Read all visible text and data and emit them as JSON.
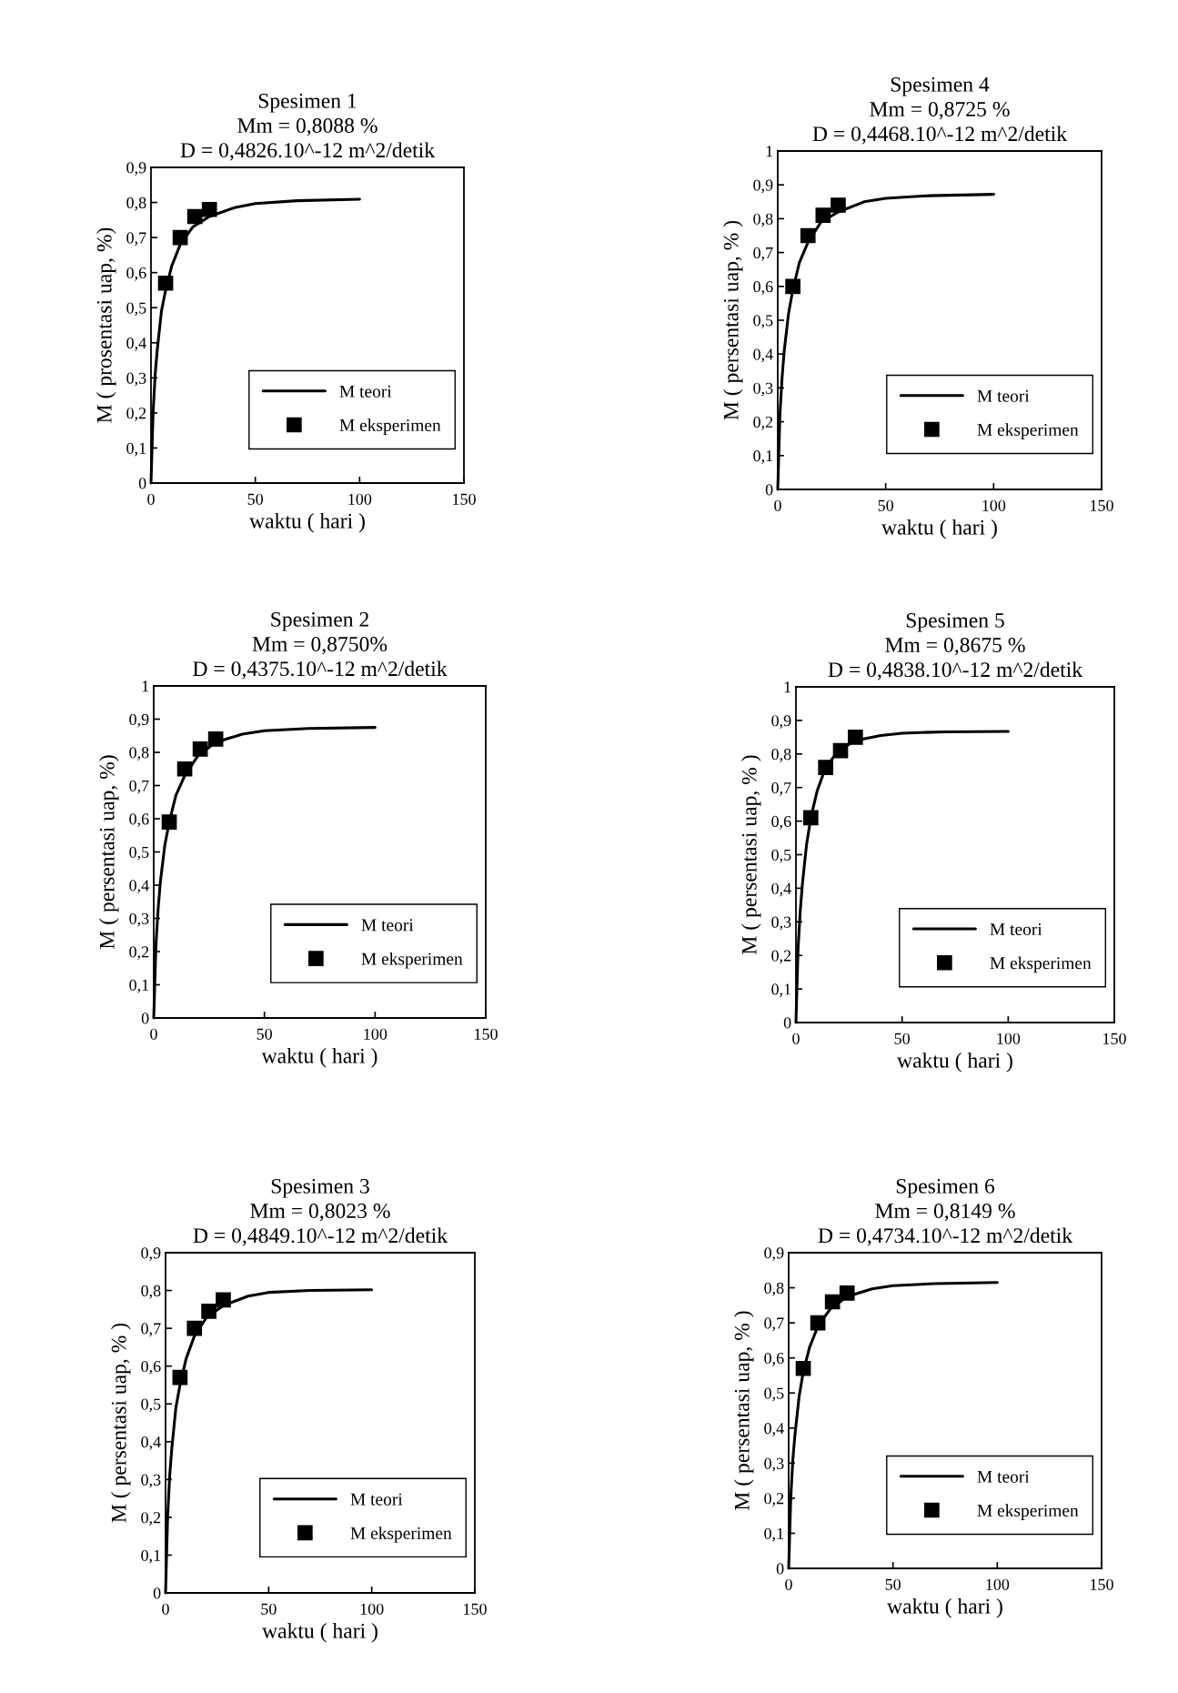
{
  "chart_data": [
    {
      "type": "line",
      "title": "Spesimen 1\nMm = 0,8088 %\nD = 0,4826.10^-12 m^2/detik",
      "xlabel": "waktu ( hari )",
      "ylabel": "M ( prosentasi uap, %)",
      "xlim": [
        0,
        150
      ],
      "xticks": [
        0,
        50,
        100,
        150
      ],
      "ylim": [
        0,
        0.9
      ],
      "yticks": [
        0,
        {
          "value": 0.1,
          "label": "0,1"
        },
        {
          "value": 0.2,
          "label": "0,2"
        },
        {
          "value": 0.3,
          "label": "0,3"
        },
        {
          "value": 0.4,
          "label": "0,4"
        },
        {
          "value": 0.5,
          "label": "0,5"
        },
        {
          "value": 0.6,
          "label": "0,6"
        },
        {
          "value": 0.7,
          "label": "0,7"
        },
        {
          "value": 0.8,
          "label": "0,8"
        },
        {
          "value": 0.9,
          "label": "0,9"
        }
      ],
      "grid": false,
      "legend": "bottom right",
      "series": [
        {
          "name": "M teori",
          "color": "#000000",
          "line_style": "solid",
          "x": [
            0,
            1,
            2,
            3,
            5,
            7,
            10,
            14,
            20,
            28,
            40,
            50,
            70,
            100
          ],
          "values": [
            0,
            0.2,
            0.31,
            0.38,
            0.49,
            0.55,
            0.62,
            0.68,
            0.73,
            0.76,
            0.785,
            0.797,
            0.805,
            0.809
          ]
        },
        {
          "name": "M eksperimen",
          "type": "scatter",
          "color": "#000000",
          "marker": "square",
          "x": [
            7,
            14,
            21,
            28
          ],
          "values": [
            0.57,
            0.7,
            0.76,
            0.78
          ]
        }
      ]
    },
    {
      "type": "line",
      "title": "Spesimen 4\nMm = 0,8725 %\nD = 0,4468.10^-12 m^2/detik",
      "xlabel": "waktu ( hari )",
      "ylabel": "M ( persentasi uap, % )",
      "xlim": [
        0,
        150
      ],
      "xticks": [
        0,
        50,
        100,
        150
      ],
      "ylim": [
        0,
        1
      ],
      "yticks": [
        0,
        {
          "value": 0.1,
          "label": "0,1"
        },
        {
          "value": 0.2,
          "label": "0,2"
        },
        {
          "value": 0.3,
          "label": "0,3"
        },
        {
          "value": 0.4,
          "label": "0,4"
        },
        {
          "value": 0.5,
          "label": "0,5"
        },
        {
          "value": 0.6,
          "label": "0,6"
        },
        {
          "value": 0.7,
          "label": "0,7"
        },
        {
          "value": 0.8,
          "label": "0,8"
        },
        {
          "value": 0.9,
          "label": "0,9"
        },
        1
      ],
      "grid": false,
      "legend": "bottom right",
      "series": [
        {
          "name": "M teori",
          "color": "#000000",
          "line_style": "solid",
          "x": [
            0,
            1,
            2,
            3,
            5,
            7,
            10,
            14,
            20,
            28,
            40,
            50,
            70,
            100
          ],
          "values": [
            0,
            0.22,
            0.33,
            0.41,
            0.52,
            0.59,
            0.67,
            0.73,
            0.79,
            0.82,
            0.85,
            0.86,
            0.868,
            0.872
          ]
        },
        {
          "name": "M eksperimen",
          "type": "scatter",
          "color": "#000000",
          "marker": "square",
          "x": [
            7,
            14,
            21,
            28
          ],
          "values": [
            0.6,
            0.75,
            0.81,
            0.84
          ]
        }
      ]
    },
    {
      "type": "line",
      "title": "Spesimen 2\nMm = 0,8750%\nD = 0,4375.10^-12 m^2/detik",
      "xlabel": "waktu ( hari )",
      "ylabel": "M ( persentasi uap, %)",
      "xlim": [
        0,
        150
      ],
      "xticks": [
        0,
        50,
        100,
        150
      ],
      "ylim": [
        0,
        1
      ],
      "yticks": [
        0,
        {
          "value": 0.1,
          "label": "0,1"
        },
        {
          "value": 0.2,
          "label": "0,2"
        },
        {
          "value": 0.3,
          "label": "0,3"
        },
        {
          "value": 0.4,
          "label": "0,4"
        },
        {
          "value": 0.5,
          "label": "0,5"
        },
        {
          "value": 0.6,
          "label": "0,6"
        },
        {
          "value": 0.7,
          "label": "0,7"
        },
        {
          "value": 0.8,
          "label": "0,8"
        },
        {
          "value": 0.9,
          "label": "0,9"
        },
        1
      ],
      "grid": false,
      "legend": "bottom right",
      "series": [
        {
          "name": "M teori",
          "color": "#000000",
          "line_style": "solid",
          "x": [
            0,
            1,
            2,
            3,
            5,
            7,
            10,
            14,
            20,
            28,
            40,
            50,
            70,
            100
          ],
          "values": [
            0,
            0.22,
            0.33,
            0.41,
            0.52,
            0.59,
            0.67,
            0.73,
            0.79,
            0.83,
            0.855,
            0.865,
            0.872,
            0.875
          ]
        },
        {
          "name": "M eksperimen",
          "type": "scatter",
          "color": "#000000",
          "marker": "square",
          "x": [
            7,
            14,
            21,
            28
          ],
          "values": [
            0.59,
            0.75,
            0.81,
            0.84
          ]
        }
      ]
    },
    {
      "type": "line",
      "title": "Spesimen 5\nMm = 0,8675 %\nD = 0,4838.10^-12 m^2/detik",
      "xlabel": "waktu ( hari )",
      "ylabel": "M ( persentasi uap, % )",
      "xlim": [
        0,
        150
      ],
      "xticks": [
        0,
        50,
        100,
        150
      ],
      "ylim": [
        0,
        1
      ],
      "yticks": [
        0,
        {
          "value": 0.1,
          "label": "0,1"
        },
        {
          "value": 0.2,
          "label": "0,2"
        },
        {
          "value": 0.3,
          "label": "0,3"
        },
        {
          "value": 0.4,
          "label": "0,4"
        },
        {
          "value": 0.5,
          "label": "0,5"
        },
        {
          "value": 0.6,
          "label": "0,6"
        },
        {
          "value": 0.7,
          "label": "0,7"
        },
        {
          "value": 0.8,
          "label": "0,8"
        },
        {
          "value": 0.9,
          "label": "0,9"
        },
        1
      ],
      "grid": false,
      "legend": "bottom right",
      "series": [
        {
          "name": "M teori",
          "color": "#000000",
          "line_style": "solid",
          "x": [
            0,
            1,
            2,
            3,
            5,
            7,
            10,
            14,
            20,
            28,
            40,
            50,
            70,
            100
          ],
          "values": [
            0,
            0.22,
            0.33,
            0.41,
            0.53,
            0.61,
            0.69,
            0.76,
            0.81,
            0.84,
            0.855,
            0.862,
            0.866,
            0.867
          ]
        },
        {
          "name": "M eksperimen",
          "type": "scatter",
          "color": "#000000",
          "marker": "square",
          "x": [
            7,
            14,
            21,
            28
          ],
          "values": [
            0.61,
            0.76,
            0.81,
            0.85
          ]
        }
      ]
    },
    {
      "type": "line",
      "title": "Spesimen 3\nMm = 0,8023 %\nD = 0,4849.10^-12 m^2/detik",
      "xlabel": "waktu ( hari )",
      "ylabel": "M ( persentasi uap, % )",
      "xlim": [
        0,
        150
      ],
      "xticks": [
        0,
        50,
        100,
        150
      ],
      "ylim": [
        0,
        0.9
      ],
      "yticks": [
        0,
        {
          "value": 0.1,
          "label": "0,1"
        },
        {
          "value": 0.2,
          "label": "0,2"
        },
        {
          "value": 0.3,
          "label": "0,3"
        },
        {
          "value": 0.4,
          "label": "0,4"
        },
        {
          "value": 0.5,
          "label": "0,5"
        },
        {
          "value": 0.6,
          "label": "0,6"
        },
        {
          "value": 0.7,
          "label": "0,7"
        },
        {
          "value": 0.8,
          "label": "0,8"
        },
        {
          "value": 0.9,
          "label": "0,9"
        }
      ],
      "grid": false,
      "legend": "bottom right",
      "series": [
        {
          "name": "M teori",
          "color": "#000000",
          "line_style": "solid",
          "x": [
            0,
            1,
            2,
            3,
            5,
            7,
            10,
            14,
            20,
            28,
            40,
            50,
            70,
            100
          ],
          "values": [
            0,
            0.2,
            0.31,
            0.38,
            0.49,
            0.55,
            0.62,
            0.68,
            0.73,
            0.76,
            0.785,
            0.795,
            0.8,
            0.802
          ]
        },
        {
          "name": "M eksperimen",
          "type": "scatter",
          "color": "#000000",
          "marker": "square",
          "x": [
            7,
            14,
            21,
            28
          ],
          "values": [
            0.57,
            0.7,
            0.745,
            0.775
          ]
        }
      ]
    },
    {
      "type": "line",
      "title": "Spesimen 6\nMm = 0,8149 %\nD = 0,4734.10^-12 m^2/detik",
      "xlabel": "waktu ( hari )",
      "ylabel": "M ( persentasi uap, % )",
      "xlim": [
        0,
        150
      ],
      "xticks": [
        0,
        50,
        100,
        150
      ],
      "ylim": [
        0,
        0.9
      ],
      "yticks": [
        0,
        {
          "value": 0.1,
          "label": "0,1"
        },
        {
          "value": 0.2,
          "label": "0,2"
        },
        {
          "value": 0.3,
          "label": "0,3"
        },
        {
          "value": 0.4,
          "label": "0,4"
        },
        {
          "value": 0.5,
          "label": "0,5"
        },
        {
          "value": 0.6,
          "label": "0,6"
        },
        {
          "value": 0.7,
          "label": "0,7"
        },
        {
          "value": 0.8,
          "label": "0,8"
        },
        {
          "value": 0.9,
          "label": "0,9"
        }
      ],
      "grid": false,
      "legend": "bottom right",
      "series": [
        {
          "name": "M teori",
          "color": "#000000",
          "line_style": "solid",
          "x": [
            0,
            1,
            2,
            3,
            5,
            7,
            10,
            14,
            20,
            28,
            40,
            50,
            70,
            100
          ],
          "values": [
            0,
            0.2,
            0.31,
            0.38,
            0.49,
            0.56,
            0.63,
            0.69,
            0.74,
            0.775,
            0.797,
            0.806,
            0.812,
            0.815
          ]
        },
        {
          "name": "M eksperimen",
          "type": "scatter",
          "color": "#000000",
          "marker": "square",
          "x": [
            7,
            14,
            21,
            28
          ],
          "values": [
            0.57,
            0.7,
            0.76,
            0.785
          ]
        }
      ]
    }
  ]
}
